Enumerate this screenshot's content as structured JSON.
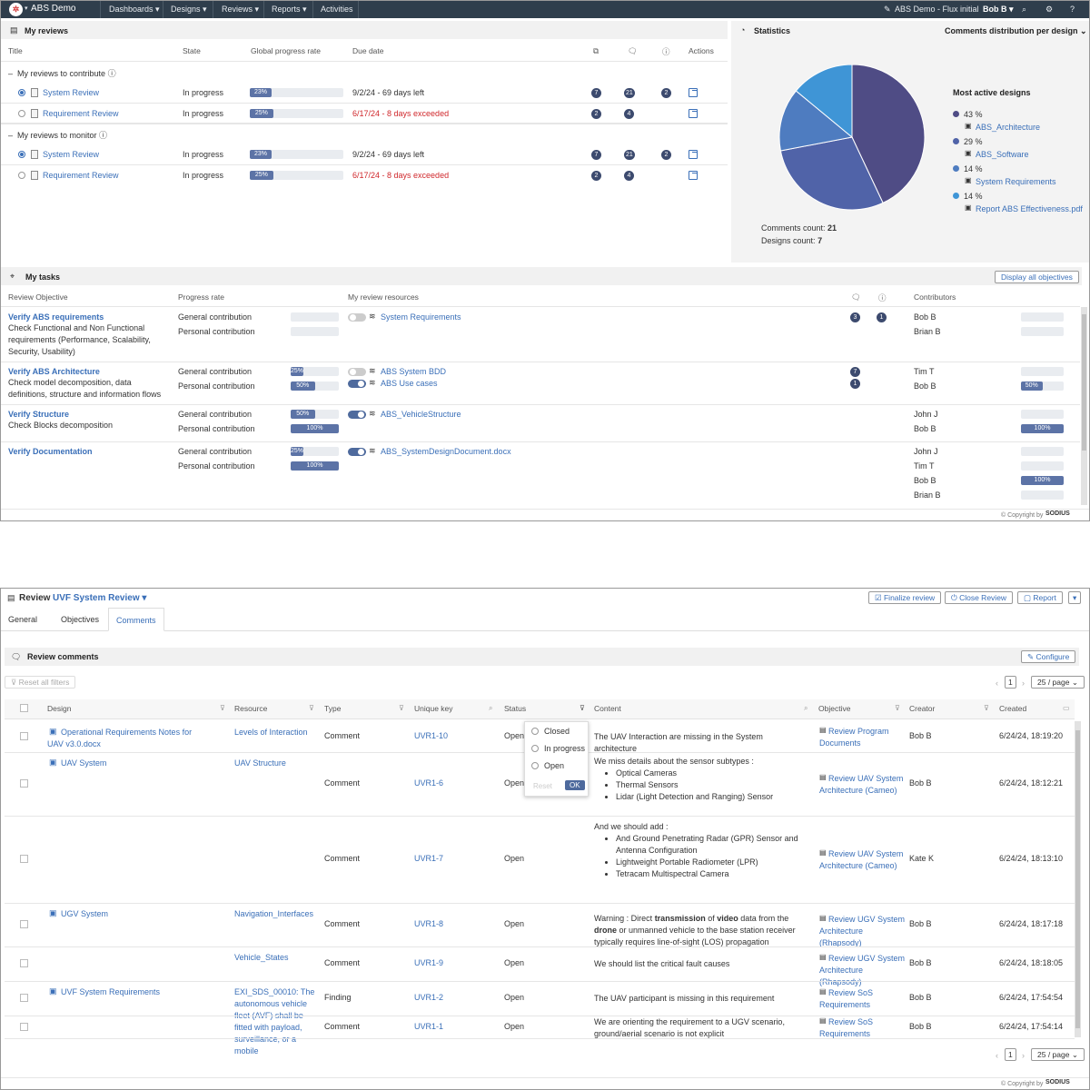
{
  "nav": {
    "app": "ABS Demo",
    "menus": [
      "Dashboards",
      "Designs",
      "Reviews",
      "Reports",
      "Activities"
    ],
    "config": "ABS Demo - Flux initial",
    "user": "Bob B"
  },
  "my_reviews": {
    "title": "My reviews",
    "columns": {
      "title": "Title",
      "state": "State",
      "progress": "Global progress rate",
      "due": "Due date",
      "actions": "Actions"
    },
    "group_contribute": "My reviews to contribute",
    "group_monitor": "My reviews to monitor",
    "rows": [
      {
        "name": "System Review",
        "state": "In progress",
        "progress": 23,
        "progress_label": "23%",
        "due": "9/2/24 - 69 days left",
        "overdue": false,
        "c1": "7",
        "c2": "21",
        "c3": "2",
        "selected": true
      },
      {
        "name": "Requirement Review",
        "state": "In progress",
        "progress": 25,
        "progress_label": "25%",
        "due": "6/17/24 - 8 days exceeded",
        "overdue": true,
        "c1": "2",
        "c2": "4",
        "c3": "",
        "selected": false
      },
      {
        "name": "System Review",
        "state": "In progress",
        "progress": 23,
        "progress_label": "23%",
        "due": "9/2/24 - 69 days left",
        "overdue": false,
        "c1": "7",
        "c2": "21",
        "c3": "2",
        "selected": true
      },
      {
        "name": "Requirement Review",
        "state": "In progress",
        "progress": 25,
        "progress_label": "25%",
        "due": "6/17/24 - 8 days exceeded",
        "overdue": true,
        "c1": "2",
        "c2": "4",
        "c3": "",
        "selected": false
      }
    ]
  },
  "statistics": {
    "title": "Statistics",
    "selector": "Comments distribution per design",
    "legend_title": "Most active designs",
    "slices": [
      {
        "label": "ABS_Architecture",
        "percent": 43,
        "percent_label": "43 %",
        "color": "#4f4c85"
      },
      {
        "label": "ABS_Software",
        "percent": 29,
        "percent_label": "29 %",
        "color": "#5063a8"
      },
      {
        "label": "System Requirements",
        "percent": 14,
        "percent_label": "14 %",
        "color": "#4e7cc0"
      },
      {
        "label": "Report ABS Effectiveness.pdf",
        "percent": 14,
        "percent_label": "14 %",
        "color": "#3f95d6"
      }
    ],
    "comments_count_label": "Comments count:",
    "comments_count": "21",
    "designs_count_label": "Designs count:",
    "designs_count": "7"
  },
  "my_tasks": {
    "title": "My tasks",
    "display_all": "Display all objectives",
    "columns": {
      "objective": "Review Objective",
      "progress": "Progress rate",
      "resources": "My review resources",
      "contributors": "Contributors"
    },
    "general": "General contribution",
    "personal": "Personal contribution",
    "tasks": [
      {
        "title": "Verify ABS requirements",
        "desc": [
          "Check Functional and Non Functional",
          "requirements (Performance, Scalability,",
          "Security, Usability)"
        ],
        "general": null,
        "personal": null,
        "resources": [
          {
            "name": "System Requirements",
            "on": false
          }
        ],
        "b1": "3",
        "b2": "1",
        "contributors": [
          {
            "name": "Bob B",
            "pct": null
          },
          {
            "name": "Brian B",
            "pct": null
          }
        ]
      },
      {
        "title": "Verify ABS Architecture",
        "desc": [
          "Check model decomposition, data",
          "definitions, structure and information flows"
        ],
        "general": 25,
        "general_label": "25%",
        "personal": 50,
        "personal_label": "50%",
        "resources": [
          {
            "name": "ABS System BDD",
            "on": false
          },
          {
            "name": "ABS Use cases",
            "on": true
          }
        ],
        "b1": "7",
        "b2": "1",
        "contributors": [
          {
            "name": "Tim T",
            "pct": null
          },
          {
            "name": "Bob B",
            "pct": 50,
            "pct_label": "50%"
          }
        ]
      },
      {
        "title": "Verify Structure",
        "desc": [
          "Check Blocks decomposition"
        ],
        "general": 50,
        "general_label": "50%",
        "personal": 100,
        "personal_label": "100%",
        "resources": [
          {
            "name": "ABS_VehicleStructure",
            "on": true
          }
        ],
        "b1": "",
        "b2": "",
        "contributors": [
          {
            "name": "John J",
            "pct": null
          },
          {
            "name": "Bob B",
            "pct": 100,
            "pct_label": "100%"
          }
        ]
      },
      {
        "title": "Verify Documentation",
        "desc": [],
        "general": 25,
        "general_label": "25%",
        "personal": 100,
        "personal_label": "100%",
        "resources": [
          {
            "name": "ABS_SystemDesignDocument.docx",
            "on": true
          }
        ],
        "b1": "",
        "b2": "",
        "contributors": [
          {
            "name": "John J",
            "pct": null
          },
          {
            "name": "Tim T",
            "pct": null
          },
          {
            "name": "Bob B",
            "pct": 100,
            "pct_label": "100%"
          },
          {
            "name": "Brian B",
            "pct": null
          }
        ]
      }
    ]
  },
  "copyright": "© Copyright by",
  "brand": "SODIUS",
  "review": {
    "prefix": "Review",
    "name": "UVF System Review",
    "buttons": {
      "finalize": "Finalize review",
      "close": "Close Review",
      "report": "Report"
    },
    "tabs": [
      "General",
      "Objectives",
      "Comments"
    ],
    "section_title": "Review comments",
    "configure": "Configure",
    "reset_filters": "Reset all filters",
    "page": "1",
    "per_page": "25 / page",
    "columns": [
      "Design",
      "Resource",
      "Type",
      "Unique key",
      "Status",
      "Content",
      "Objective",
      "Creator",
      "Created"
    ],
    "status_filter": {
      "options": [
        "Closed",
        "In progress",
        "Open"
      ],
      "reset": "Reset",
      "ok": "OK"
    },
    "rows": [
      {
        "design": "Operational Requirements Notes for UAV v3.0.docx",
        "resource": "Levels of Interaction",
        "type": "Comment",
        "key": "UVR1-10",
        "status": "Open",
        "content": "The UAV Interaction are missing in the System architecture",
        "objective": "Review Program Documents",
        "creator": "Bob B",
        "created": "6/24/24, 18:19:20"
      },
      {
        "design": "UAV System",
        "resource": "UAV Structure",
        "type": "Comment",
        "key": "UVR1-6",
        "status": "Open",
        "content_intro": "We miss details about the sensor subtypes :",
        "content_items": [
          "Optical Cameras",
          "Thermal Sensors",
          "Lidar (Light Detection and Ranging) Sensor"
        ],
        "objective": "Review UAV System Architecture (Cameo)",
        "creator": "Bob B",
        "created": "6/24/24, 18:12:21"
      },
      {
        "design": "",
        "resource": "",
        "type": "Comment",
        "key": "UVR1-7",
        "status": "Open",
        "content_intro": "And we should add :",
        "content_items": [
          "And Ground Penetrating Radar (GPR) Sensor and Antenna Configuration",
          "Lightweight Portable Radiometer (LPR)",
          "Tetracam Multispectral Camera"
        ],
        "objective": "Review UAV System Architecture (Cameo)",
        "creator": "Kate K",
        "created": "6/24/24, 18:13:10"
      },
      {
        "design": "UGV System",
        "resource": "Navigation_Interfaces",
        "type": "Comment",
        "key": "UVR1-8",
        "status": "Open",
        "content": "Warning : Direct transmission of video data from the drone or unmanned vehicle to the base station receiver typically requires line-of-sight (LOS) propagation",
        "objective": "Review UGV System Architecture (Rhapsody)",
        "creator": "Bob B",
        "created": "6/24/24, 18:17:18"
      },
      {
        "design": "",
        "resource": "Vehicle_States",
        "type": "Comment",
        "key": "UVR1-9",
        "status": "Open",
        "content": "We should list the critical fault causes",
        "objective": "Review UGV System Architecture (Rhapsody)",
        "creator": "Bob B",
        "created": "6/24/24, 18:18:05"
      },
      {
        "design": "UVF System Requirements",
        "resource": "EXI_SDS_00010: The autonomous vehicle fleet (AVF) shall be fitted with payload, surveillance, or a mobile",
        "type": "Finding",
        "key": "UVR1-2",
        "status": "Open",
        "content": "The UAV participant is missing in this requirement",
        "objective": "Review SoS Requirements",
        "creator": "Bob B",
        "created": "6/24/24, 17:54:54"
      },
      {
        "design": "",
        "resource": "",
        "type": "Comment",
        "key": "UVR1-1",
        "status": "Open",
        "content": "We are orienting the requirement to a UGV scenario, ground/aerial scenario is not explicit",
        "objective": "Review SoS Requirements",
        "creator": "Bob B",
        "created": "6/24/24, 17:54:14"
      }
    ]
  }
}
